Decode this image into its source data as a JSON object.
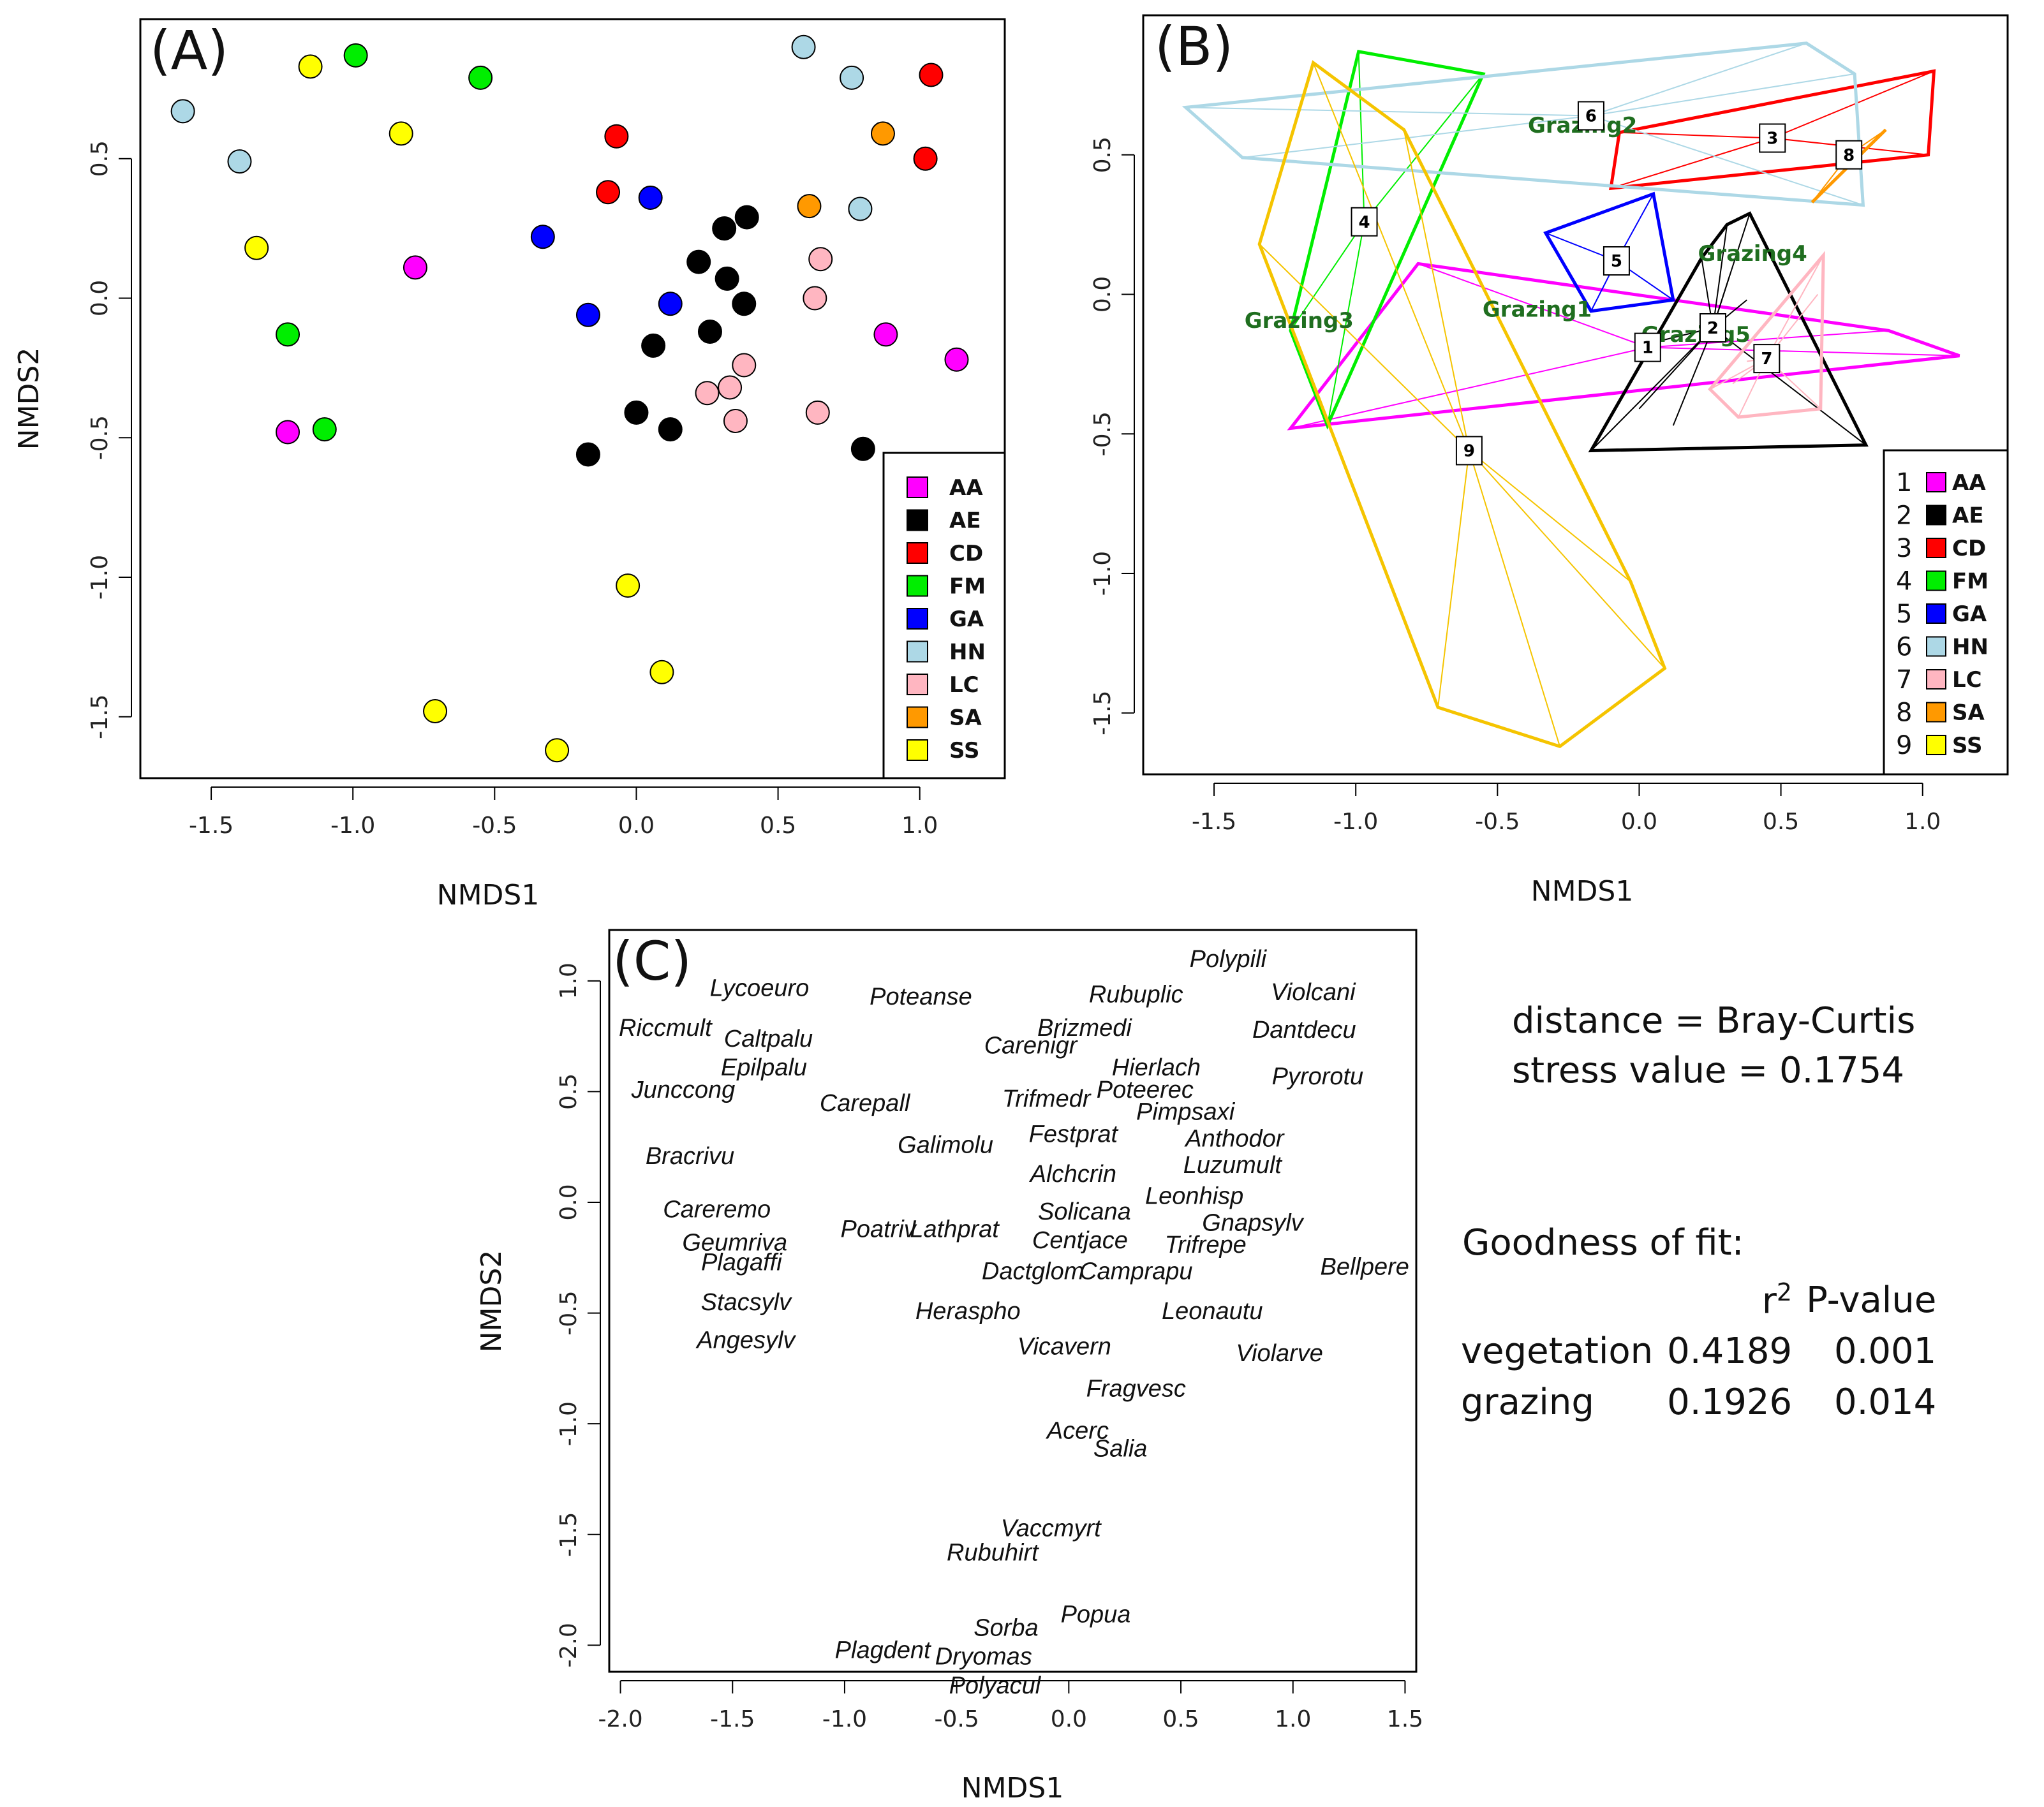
{
  "colors": {
    "AA": "#ff00ff",
    "AE": "#000000",
    "CD": "#ff0000",
    "FM": "#00ee00",
    "GA": "#0000ff",
    "HN": "#add8e6",
    "LC": "#ffb6c1",
    "SA": "#ff9900",
    "SS": "#ffff00",
    "SS_line": "#f5c400",
    "grazing_label": "#1f6e1f"
  },
  "chart_data": [
    {
      "panel": "(A)",
      "type": "scatter",
      "xlabel": "NMDS1",
      "ylabel": "NMDS2",
      "xlim": [
        -1.75,
        1.3
      ],
      "ylim": [
        -1.72,
        1.0
      ],
      "xticks": [
        -1.5,
        -1.0,
        -0.5,
        0.0,
        0.5,
        1.0
      ],
      "xtick_labels": [
        "-1.5",
        "-1.0",
        "-0.5",
        "0.0",
        "0.5",
        "1.0"
      ],
      "yticks": [
        -1.5,
        -1.0,
        -0.5,
        0.0,
        0.5
      ],
      "ytick_labels": [
        "-1.5",
        "-1.0",
        "-0.5",
        "0.0",
        "0.5"
      ],
      "legend_position": "bottom-right",
      "legend": [
        "AA",
        "AE",
        "CD",
        "FM",
        "GA",
        "HN",
        "LC",
        "SA",
        "SS"
      ],
      "series": [
        {
          "name": "AA",
          "points": [
            [
              -0.78,
              0.11
            ],
            [
              -1.23,
              -0.48
            ],
            [
              0.88,
              -0.13
            ],
            [
              1.13,
              -0.22
            ]
          ]
        },
        {
          "name": "AE",
          "points": [
            [
              0.39,
              0.29
            ],
            [
              0.31,
              0.25
            ],
            [
              0.22,
              0.13
            ],
            [
              0.32,
              0.07
            ],
            [
              0.38,
              -0.02
            ],
            [
              0.26,
              -0.12
            ],
            [
              0.06,
              -0.17
            ],
            [
              0.0,
              -0.41
            ],
            [
              0.12,
              -0.47
            ],
            [
              -0.17,
              -0.56
            ],
            [
              0.8,
              -0.54
            ]
          ]
        },
        {
          "name": "CD",
          "points": [
            [
              1.04,
              0.8
            ],
            [
              -0.07,
              0.58
            ],
            [
              1.02,
              0.5
            ],
            [
              -0.1,
              0.38
            ]
          ]
        },
        {
          "name": "FM",
          "points": [
            [
              -0.99,
              0.87
            ],
            [
              -0.55,
              0.79
            ],
            [
              -1.23,
              -0.13
            ],
            [
              -1.1,
              -0.47
            ]
          ]
        },
        {
          "name": "GA",
          "points": [
            [
              0.05,
              0.36
            ],
            [
              -0.33,
              0.22
            ],
            [
              -0.17,
              -0.06
            ],
            [
              0.12,
              -0.02
            ]
          ]
        },
        {
          "name": "HN",
          "points": [
            [
              -1.6,
              0.67
            ],
            [
              -1.4,
              0.49
            ],
            [
              0.59,
              0.9
            ],
            [
              0.76,
              0.79
            ],
            [
              0.79,
              0.32
            ]
          ]
        },
        {
          "name": "LC",
          "points": [
            [
              0.65,
              0.14
            ],
            [
              0.63,
              0.0
            ],
            [
              0.38,
              -0.24
            ],
            [
              0.25,
              -0.34
            ],
            [
              0.33,
              -0.32
            ],
            [
              0.35,
              -0.44
            ],
            [
              0.64,
              -0.41
            ]
          ]
        },
        {
          "name": "SA",
          "points": [
            [
              0.87,
              0.59
            ],
            [
              0.61,
              0.33
            ]
          ]
        },
        {
          "name": "SS",
          "points": [
            [
              -1.15,
              0.83
            ],
            [
              -0.83,
              0.59
            ],
            [
              -1.34,
              0.18
            ],
            [
              -0.03,
              -1.03
            ],
            [
              0.09,
              -1.34
            ],
            [
              -0.71,
              -1.48
            ],
            [
              -0.28,
              -1.62
            ]
          ]
        }
      ]
    },
    {
      "panel": "(B)",
      "type": "scatter",
      "xlabel": "NMDS1",
      "ylabel": "",
      "xlim": [
        -1.75,
        1.3
      ],
      "ylim": [
        -1.72,
        1.0
      ],
      "xticks": [
        -1.5,
        -1.0,
        -0.5,
        0.0,
        0.5,
        1.0
      ],
      "xtick_labels": [
        "-1.5",
        "-1.0",
        "-0.5",
        "0.0",
        "0.5",
        "1.0"
      ],
      "yticks": [
        -1.5,
        -1.0,
        -0.5,
        0.0,
        0.5
      ],
      "ytick_labels": [
        "-1.5",
        "-1.0",
        "-0.5",
        "0.0",
        "0.5"
      ],
      "legend_position": "bottom-right",
      "legend": [
        {
          "num": "1",
          "name": "AA"
        },
        {
          "num": "2",
          "name": "AE"
        },
        {
          "num": "3",
          "name": "CD"
        },
        {
          "num": "4",
          "name": "FM"
        },
        {
          "num": "5",
          "name": "GA"
        },
        {
          "num": "6",
          "name": "HN"
        },
        {
          "num": "7",
          "name": "LC"
        },
        {
          "num": "8",
          "name": "SA"
        },
        {
          "num": "9",
          "name": "SS"
        }
      ],
      "groups": [
        {
          "name": "AA",
          "centroid_label": "1",
          "centroid": [
            0.03,
            -0.19
          ]
        },
        {
          "name": "AE",
          "centroid_label": "2",
          "centroid": [
            0.26,
            -0.12
          ]
        },
        {
          "name": "CD",
          "centroid_label": "3",
          "centroid": [
            0.47,
            0.56
          ]
        },
        {
          "name": "FM",
          "centroid_label": "4",
          "centroid": [
            -0.97,
            0.26
          ]
        },
        {
          "name": "GA",
          "centroid_label": "5",
          "centroid": [
            -0.08,
            0.12
          ]
        },
        {
          "name": "HN",
          "centroid_label": "6",
          "centroid": [
            -0.17,
            0.64
          ]
        },
        {
          "name": "LC",
          "centroid_label": "7",
          "centroid": [
            0.45,
            -0.23
          ]
        },
        {
          "name": "SA",
          "centroid_label": "8",
          "centroid": [
            0.74,
            0.5
          ]
        },
        {
          "name": "SS",
          "centroid_label": "9",
          "centroid": [
            -0.6,
            -0.56
          ]
        }
      ],
      "grazing_labels": [
        {
          "text": "Grazing1",
          "pos": [
            -0.36,
            -0.08
          ]
        },
        {
          "text": "Grazing2",
          "pos": [
            -0.2,
            0.58
          ]
        },
        {
          "text": "Grazing3",
          "pos": [
            -1.2,
            -0.12
          ]
        },
        {
          "text": "Grazing4",
          "pos": [
            0.4,
            0.12
          ]
        },
        {
          "text": "Grazing5",
          "pos": [
            0.2,
            -0.17
          ]
        }
      ]
    },
    {
      "panel": "(C)",
      "type": "scatter",
      "xlabel": "NMDS1",
      "ylabel": "NMDS2",
      "xlim": [
        -2.05,
        1.55
      ],
      "ylim": [
        -2.12,
        1.23
      ],
      "xticks": [
        -2.0,
        -1.5,
        -1.0,
        -0.5,
        0.0,
        0.5,
        1.0,
        1.5
      ],
      "xtick_labels": [
        "-2.0",
        "-1.5",
        "-1.0",
        "-0.5",
        "0.0",
        "0.5",
        "1.0",
        "1.5"
      ],
      "yticks": [
        -2.0,
        -1.5,
        -1.0,
        -0.5,
        0.0,
        0.5,
        1.0
      ],
      "ytick_labels": [
        "-2.0",
        "-1.5",
        "-1.0",
        "-0.5",
        "0.0",
        "0.5",
        "1.0"
      ],
      "species": [
        {
          "name": "Lycoeuro",
          "x": -1.38,
          "y": 0.97
        },
        {
          "name": "Poteanse",
          "x": -0.66,
          "y": 0.93
        },
        {
          "name": "Rubuplic",
          "x": 0.3,
          "y": 0.94
        },
        {
          "name": "Polypili",
          "x": 0.71,
          "y": 1.1
        },
        {
          "name": "Violcani",
          "x": 1.09,
          "y": 0.95
        },
        {
          "name": "Riccmult",
          "x": -1.8,
          "y": 0.79
        },
        {
          "name": "Caltpalu",
          "x": -1.34,
          "y": 0.74
        },
        {
          "name": "Brizmedi",
          "x": 0.07,
          "y": 0.79
        },
        {
          "name": "Dantdecu",
          "x": 1.05,
          "y": 0.78
        },
        {
          "name": "Carenigr",
          "x": -0.17,
          "y": 0.71
        },
        {
          "name": "Epilpalu",
          "x": -1.36,
          "y": 0.61
        },
        {
          "name": "Hierlach",
          "x": 0.39,
          "y": 0.61
        },
        {
          "name": "Pyrorotu",
          "x": 1.11,
          "y": 0.57
        },
        {
          "name": "Junccong",
          "x": -1.72,
          "y": 0.51
        },
        {
          "name": "Carepall",
          "x": -0.91,
          "y": 0.45
        },
        {
          "name": "Trifmedr",
          "x": -0.1,
          "y": 0.47
        },
        {
          "name": "Poteerec",
          "x": 0.34,
          "y": 0.51
        },
        {
          "name": "Pimpsaxi",
          "x": 0.52,
          "y": 0.41
        },
        {
          "name": "Festprat",
          "x": 0.02,
          "y": 0.31
        },
        {
          "name": "Anthodor",
          "x": 0.74,
          "y": 0.29
        },
        {
          "name": "Galimolu",
          "x": -0.55,
          "y": 0.26
        },
        {
          "name": "Bracrivu",
          "x": -1.69,
          "y": 0.21
        },
        {
          "name": "Luzumult",
          "x": 0.73,
          "y": 0.17
        },
        {
          "name": "Alchcrin",
          "x": 0.02,
          "y": 0.13
        },
        {
          "name": "Leonhisp",
          "x": 0.56,
          "y": 0.03
        },
        {
          "name": "Careremo",
          "x": -1.57,
          "y": -0.03
        },
        {
          "name": "Solicana",
          "x": 0.07,
          "y": -0.04
        },
        {
          "name": "Gnapsylv",
          "x": 0.82,
          "y": -0.09
        },
        {
          "name": "Poatriv",
          "x": -0.85,
          "y": -0.12
        },
        {
          "name": "Lathprat",
          "x": -0.51,
          "y": -0.12
        },
        {
          "name": "Centjace",
          "x": 0.05,
          "y": -0.17
        },
        {
          "name": "Geumriva",
          "x": -1.49,
          "y": -0.18
        },
        {
          "name": "Trifrepe",
          "x": 0.61,
          "y": -0.19
        },
        {
          "name": "Plagaffi",
          "x": -1.46,
          "y": -0.27
        },
        {
          "name": "Dactglom",
          "x": -0.16,
          "y": -0.31
        },
        {
          "name": "Camprapu",
          "x": 0.3,
          "y": -0.31
        },
        {
          "name": "Bellpere",
          "x": 1.32,
          "y": -0.29
        },
        {
          "name": "Stacsylv",
          "x": -1.44,
          "y": -0.45
        },
        {
          "name": "Heraspho",
          "x": -0.45,
          "y": -0.49
        },
        {
          "name": "Leonautu",
          "x": 0.64,
          "y": -0.49
        },
        {
          "name": "Angesylv",
          "x": -1.44,
          "y": -0.62
        },
        {
          "name": "Vicavern",
          "x": -0.02,
          "y": -0.65
        },
        {
          "name": "Violarve",
          "x": 0.94,
          "y": -0.68
        },
        {
          "name": "Fragvesc",
          "x": 0.3,
          "y": -0.84
        },
        {
          "name": "Acerc",
          "x": 0.04,
          "y": -1.03
        },
        {
          "name": "Salia",
          "x": 0.23,
          "y": -1.11
        },
        {
          "name": "Vaccmyrt",
          "x": -0.08,
          "y": -1.47
        },
        {
          "name": "Rubuhirt",
          "x": -0.34,
          "y": -1.58
        },
        {
          "name": "Popua",
          "x": 0.12,
          "y": -1.86
        },
        {
          "name": "Sorba",
          "x": -0.28,
          "y": -1.92
        },
        {
          "name": "Plagdent",
          "x": -0.83,
          "y": -2.02
        },
        {
          "name": "Dryomas",
          "x": -0.38,
          "y": -2.05
        },
        {
          "name": "Polyacul",
          "x": -0.33,
          "y": -2.18
        }
      ]
    }
  ],
  "info": {
    "distance": "distance = Bray-Curtis",
    "stress": "stress value = 0.1754",
    "gof_title": "Goodness of fit:",
    "col_r2": "r",
    "col_r2_sup": "2",
    "col_p": "P-value",
    "rows": [
      {
        "label": "vegetation",
        "r2": "0.4189",
        "p": "0.001"
      },
      {
        "label": "grazing",
        "r2": "0.1926",
        "p": "0.014"
      }
    ]
  }
}
